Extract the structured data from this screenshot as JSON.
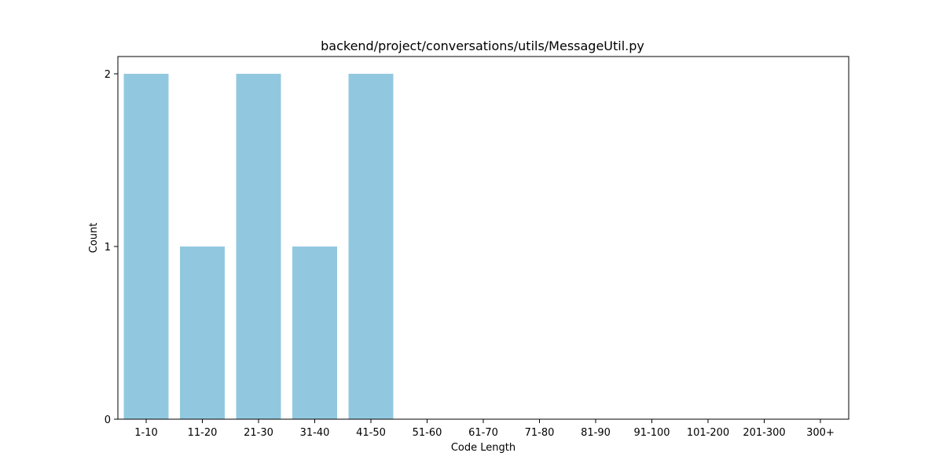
{
  "chart_data": {
    "type": "bar",
    "title": "backend/project/conversations/utils/MessageUtil.py",
    "xlabel": "Code Length",
    "ylabel": "Count",
    "categories": [
      "1-10",
      "11-20",
      "21-30",
      "31-40",
      "41-50",
      "51-60",
      "61-70",
      "71-80",
      "81-90",
      "91-100",
      "101-200",
      "201-300",
      "300+"
    ],
    "values": [
      2,
      1,
      2,
      1,
      2,
      0,
      0,
      0,
      0,
      0,
      0,
      0,
      0
    ],
    "ylim": [
      0,
      2.1
    ],
    "yticks": [
      0,
      1,
      2
    ],
    "grid": false,
    "bar_color": "#92c8df"
  }
}
